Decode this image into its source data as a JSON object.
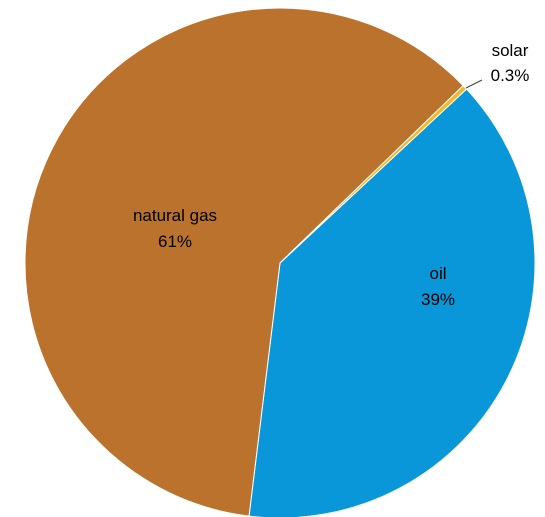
{
  "chart_data": {
    "type": "pie",
    "title": "",
    "legend": "none",
    "slices": [
      {
        "label": "oil",
        "value": 39,
        "display": "39%",
        "color": "#0A97D9"
      },
      {
        "label": "natural gas",
        "value": 61,
        "display": "61%",
        "color": "#BA722C"
      },
      {
        "label": "solar",
        "value": 0.3,
        "display": "0.3%",
        "color": "#F2B826"
      }
    ]
  }
}
